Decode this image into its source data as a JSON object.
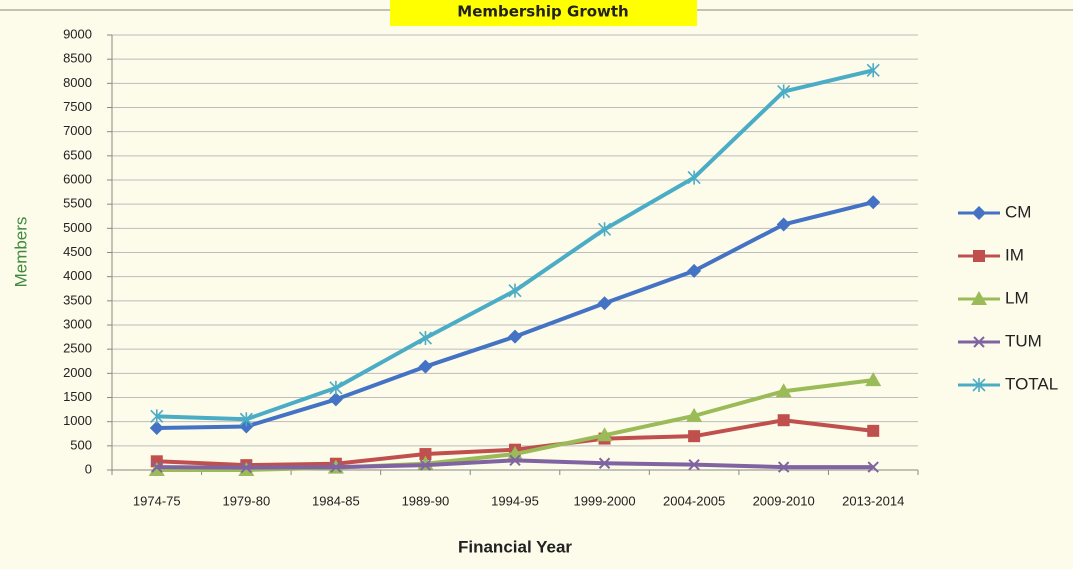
{
  "chart_data": {
    "type": "line",
    "title": "Membership Growth",
    "x_label": "Financial Year",
    "y_label": "Members",
    "categories": [
      "1974-75",
      "1979-80",
      "1984-85",
      "1989-90",
      "1994-95",
      "1999-2000",
      "2004-2005",
      "2009-2010",
      "2013-2014"
    ],
    "series": [
      {
        "name": "CM",
        "color": "#4472c4",
        "marker": "diamond",
        "values": [
          870,
          900,
          1460,
          2140,
          2760,
          3450,
          4120,
          5080,
          5540
        ]
      },
      {
        "name": "IM",
        "color": "#c0504d",
        "marker": "square",
        "values": [
          180,
          100,
          130,
          330,
          420,
          650,
          700,
          1030,
          810
        ]
      },
      {
        "name": "LM",
        "color": "#9bbb59",
        "marker": "triangle",
        "values": [
          0,
          0,
          50,
          130,
          330,
          720,
          1120,
          1630,
          1860
        ]
      },
      {
        "name": "TUM",
        "color": "#8064a2",
        "marker": "x",
        "values": [
          60,
          50,
          60,
          100,
          200,
          140,
          110,
          60,
          60
        ]
      },
      {
        "name": "TOTAL",
        "color": "#4bacc6",
        "marker": "star",
        "values": [
          1110,
          1050,
          1700,
          2730,
          3710,
          4980,
          6050,
          7830,
          8270
        ]
      }
    ],
    "ylim": [
      0,
      9000
    ],
    "yticks": [
      0,
      500,
      1000,
      1500,
      2000,
      2500,
      3000,
      3500,
      4000,
      4500,
      5000,
      5500,
      6000,
      6500,
      7000,
      7500,
      8000,
      8500,
      9000
    ],
    "grid": true,
    "legend": "right"
  }
}
